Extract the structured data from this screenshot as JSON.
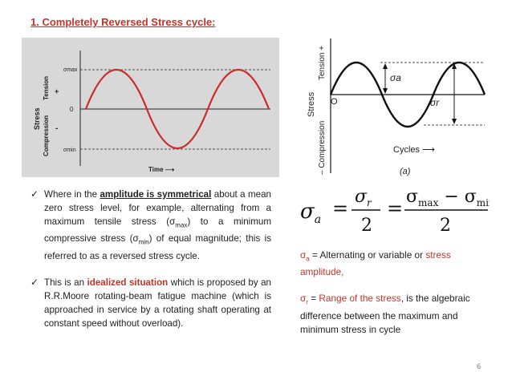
{
  "title": "1. Completely Reversed Stress cycle:",
  "figure1": {
    "ylabel_stress": "Stress",
    "label_tension": "Tension",
    "label_compression": "Compression",
    "plus": "+",
    "minus": "-",
    "smax": "σmax",
    "zero": "0",
    "smin": "σmin",
    "xlabel": "Time ⟶"
  },
  "figure2": {
    "label_tension": "Tension +",
    "label_stress": "Stress",
    "label_compression": "– Compression",
    "origin": "O",
    "sigma_a": "σa",
    "sigma_r": "σr",
    "xlabel": "Cycles ⟶",
    "caption": "(a)"
  },
  "formula": {
    "lhs": "σa",
    "n1": "σr",
    "d1": "2",
    "eq": "=",
    "n2": "σmax − σmin",
    "d2": "2"
  },
  "bullets": [
    {
      "check": "✓",
      "t1": "Where in the ",
      "highlight": "amplitude is symmetrical",
      "t2": " about a mean zero stress level, for example, alternating from a maximum tensile stress (σ",
      "sub1": "max",
      "t3": ") to a minimum compressive stress (σ",
      "sub2": "min",
      "t4": ") of equal magnitude; this is referred to as a reversed stress cycle."
    },
    {
      "check": "✓",
      "t1": "This is an ",
      "highlight": "idealized situation",
      "t2": " which is proposed by an R.R.Moore rotating-beam fatigue machine (which is approached in service by a rotating shaft operating at constant speed without overload)."
    }
  ],
  "definitions": {
    "d1_sym": "σ",
    "d1_sub": "a",
    "d1_text": " = Alternating or variable or ",
    "d1_red": "stress amplitude,",
    "d2_sym": "σ",
    "d2_sub": "r",
    "d2_eq": " = ",
    "d2_red": "Range of the stress",
    "d2_text": ", is the algebraic difference between the maximum and minimum stress in cycle"
  },
  "page_number": "6",
  "colors": {
    "accent": "#c0352a",
    "curve": "#cc2b2b"
  }
}
